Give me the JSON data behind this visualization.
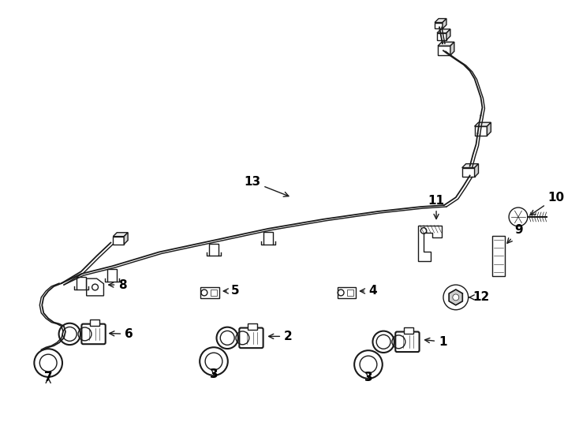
{
  "background_color": "#ffffff",
  "line_color": "#1a1a1a",
  "label_color": "#000000",
  "fig_width": 7.34,
  "fig_height": 5.4,
  "dpi": 100
}
